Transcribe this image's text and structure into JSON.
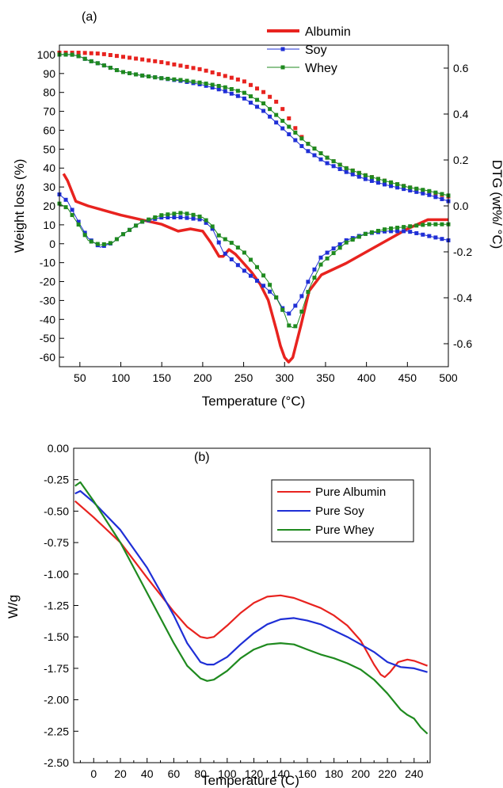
{
  "chart_data": [
    {
      "type": "line",
      "panel_label": "(a)",
      "xlabel": "Temperature (°C)",
      "ylabel_left": "Weight loss (%)",
      "ylabel_right": "DTG (wt%/ °C)",
      "xlim": [
        25,
        500
      ],
      "ylim_left": [
        -65,
        105
      ],
      "ylim_right": [
        -0.7,
        0.7
      ],
      "x_ticks": [
        50,
        100,
        150,
        200,
        250,
        300,
        350,
        400,
        450,
        500
      ],
      "y_left_ticks": [
        100,
        90,
        80,
        70,
        60,
        50,
        40,
        30,
        20,
        10,
        0,
        -10,
        -20,
        -30,
        -40,
        -50,
        -60
      ],
      "y_right_ticks": [
        0.6,
        0.4,
        0.2,
        0.0,
        -0.2,
        -0.4,
        -0.6
      ],
      "legend_position": "top-right",
      "legend": [
        {
          "label": "Albumin",
          "color": "#e8231f",
          "marker": "none"
        },
        {
          "label": "Soy",
          "color": "#1f2fd6",
          "marker": "square"
        },
        {
          "label": "Whey",
          "color": "#1f8a1f",
          "marker": "square"
        }
      ],
      "series": [
        {
          "name": "Albumin",
          "color": "#e8231f",
          "curve": "weight",
          "axis": "left",
          "x": [
            25,
            50,
            75,
            100,
            125,
            150,
            175,
            200,
            225,
            250,
            275,
            290,
            300,
            310,
            325,
            350,
            375,
            400,
            425,
            450,
            475,
            500
          ],
          "y": [
            101,
            101,
            100.5,
            99,
            97.5,
            96,
            94,
            92,
            89,
            86,
            80,
            75,
            70,
            63,
            54,
            46,
            40,
            36,
            33,
            30,
            27.5,
            25
          ]
        },
        {
          "name": "Soy",
          "color": "#1f2fd6",
          "curve": "weight",
          "axis": "left",
          "x": [
            25,
            40,
            50,
            60,
            75,
            100,
            125,
            150,
            175,
            200,
            225,
            250,
            275,
            300,
            325,
            350,
            375,
            400,
            425,
            450,
            475,
            500
          ],
          "y": [
            100,
            100,
            99,
            97,
            95,
            91,
            89,
            87.5,
            86,
            84,
            81,
            77,
            70,
            60,
            50,
            43,
            38,
            34,
            31,
            28.5,
            26,
            22.5
          ]
        },
        {
          "name": "Whey",
          "color": "#1f8a1f",
          "curve": "weight",
          "axis": "left",
          "x": [
            25,
            40,
            50,
            60,
            75,
            100,
            125,
            150,
            175,
            200,
            225,
            250,
            275,
            300,
            325,
            350,
            375,
            400,
            425,
            450,
            475,
            500
          ],
          "y": [
            100,
            100,
            99,
            97,
            95,
            91,
            89,
            87.5,
            86.5,
            85,
            83,
            80,
            74,
            64,
            54,
            46,
            40,
            36,
            33,
            30,
            28,
            25.5
          ]
        },
        {
          "name": "Albumin",
          "color": "#e8231f",
          "curve": "dtg",
          "axis": "right",
          "x": [
            30,
            35,
            45,
            60,
            80,
            100,
            125,
            150,
            170,
            185,
            200,
            210,
            220,
            225,
            232,
            240,
            250,
            260,
            270,
            280,
            290,
            295,
            300,
            305,
            310,
            320,
            330,
            345,
            375,
            400,
            425,
            450,
            475,
            500
          ],
          "y": [
            0.14,
            0.11,
            0.02,
            0.0,
            -0.02,
            -0.04,
            -0.06,
            -0.08,
            -0.11,
            -0.1,
            -0.11,
            -0.16,
            -0.22,
            -0.22,
            -0.19,
            -0.21,
            -0.25,
            -0.29,
            -0.34,
            -0.41,
            -0.54,
            -0.61,
            -0.66,
            -0.68,
            -0.66,
            -0.52,
            -0.37,
            -0.3,
            -0.25,
            -0.2,
            -0.15,
            -0.1,
            -0.06,
            -0.06
          ]
        },
        {
          "name": "Soy",
          "color": "#1f2fd6",
          "curve": "dtg",
          "axis": "right",
          "x": [
            25,
            35,
            50,
            60,
            75,
            90,
            100,
            125,
            150,
            175,
            200,
            212,
            225,
            250,
            275,
            290,
            300,
            305,
            310,
            320,
            330,
            345,
            375,
            400,
            425,
            450,
            475,
            500
          ],
          "y": [
            0.05,
            0.02,
            -0.08,
            -0.14,
            -0.18,
            -0.16,
            -0.13,
            -0.07,
            -0.05,
            -0.05,
            -0.06,
            -0.1,
            -0.2,
            -0.28,
            -0.35,
            -0.4,
            -0.46,
            -0.47,
            -0.45,
            -0.4,
            -0.32,
            -0.22,
            -0.15,
            -0.12,
            -0.11,
            -0.11,
            -0.13,
            -0.15
          ]
        },
        {
          "name": "Whey",
          "color": "#1f8a1f",
          "curve": "dtg",
          "axis": "right",
          "x": [
            25,
            35,
            50,
            60,
            75,
            90,
            100,
            125,
            150,
            175,
            190,
            200,
            210,
            220,
            235,
            250,
            265,
            280,
            290,
            300,
            305,
            310,
            315,
            320,
            330,
            345,
            375,
            400,
            425,
            450,
            475,
            500
          ],
          "y": [
            0.01,
            -0.01,
            -0.09,
            -0.15,
            -0.17,
            -0.16,
            -0.13,
            -0.07,
            -0.04,
            -0.03,
            -0.04,
            -0.05,
            -0.08,
            -0.13,
            -0.16,
            -0.2,
            -0.26,
            -0.33,
            -0.4,
            -0.47,
            -0.52,
            -0.53,
            -0.52,
            -0.47,
            -0.36,
            -0.25,
            -0.16,
            -0.12,
            -0.1,
            -0.09,
            -0.08,
            -0.08
          ]
        }
      ]
    },
    {
      "type": "line",
      "panel_label": "(b)",
      "xlabel": "Temperature (C)",
      "ylabel": "W/g",
      "xlim": [
        -15,
        252
      ],
      "ylim": [
        -2.5,
        0.0
      ],
      "x_ticks": [
        0,
        20,
        40,
        60,
        80,
        100,
        120,
        140,
        160,
        180,
        200,
        220,
        240
      ],
      "y_ticks": [
        "0.00",
        "-0.25",
        "-0.50",
        "-0.75",
        "-1.00",
        "-1.25",
        "-1.50",
        "-1.75",
        "-2.00",
        "-2.25",
        "-2.50"
      ],
      "legend_position": "top-right",
      "legend": [
        {
          "label": "Pure Albumin",
          "color": "#e8231f"
        },
        {
          "label": "Pure Soy",
          "color": "#1f2fd6"
        },
        {
          "label": "Pure Whey",
          "color": "#1f8a1f"
        }
      ],
      "series": [
        {
          "name": "Pure Albumin",
          "color": "#e8231f",
          "x": [
            -14,
            0,
            20,
            40,
            60,
            70,
            80,
            85,
            90,
            100,
            110,
            120,
            130,
            140,
            150,
            160,
            170,
            180,
            190,
            200,
            210,
            215,
            218,
            222,
            228,
            235,
            240,
            245,
            250
          ],
          "y": [
            -0.42,
            -0.55,
            -0.75,
            -1.03,
            -1.3,
            -1.42,
            -1.5,
            -1.51,
            -1.5,
            -1.41,
            -1.31,
            -1.23,
            -1.18,
            -1.17,
            -1.19,
            -1.23,
            -1.27,
            -1.33,
            -1.41,
            -1.53,
            -1.72,
            -1.8,
            -1.82,
            -1.78,
            -1.7,
            -1.68,
            -1.69,
            -1.71,
            -1.73
          ]
        },
        {
          "name": "Pure Soy",
          "color": "#1f2fd6",
          "x": [
            -14,
            -10,
            0,
            20,
            40,
            60,
            70,
            80,
            85,
            90,
            100,
            110,
            120,
            130,
            140,
            150,
            160,
            170,
            180,
            190,
            200,
            210,
            220,
            230,
            240,
            250
          ],
          "y": [
            -0.36,
            -0.34,
            -0.43,
            -0.65,
            -0.95,
            -1.33,
            -1.55,
            -1.7,
            -1.72,
            -1.72,
            -1.66,
            -1.56,
            -1.47,
            -1.4,
            -1.36,
            -1.35,
            -1.37,
            -1.4,
            -1.45,
            -1.5,
            -1.56,
            -1.62,
            -1.7,
            -1.74,
            -1.75,
            -1.78
          ]
        },
        {
          "name": "Pure Whey",
          "color": "#1f8a1f",
          "x": [
            -14,
            -10,
            0,
            20,
            40,
            60,
            70,
            80,
            85,
            90,
            100,
            110,
            120,
            130,
            140,
            150,
            160,
            170,
            180,
            190,
            200,
            210,
            220,
            230,
            235,
            240,
            245,
            250
          ],
          "y": [
            -0.3,
            -0.27,
            -0.42,
            -0.75,
            -1.15,
            -1.55,
            -1.73,
            -1.83,
            -1.85,
            -1.84,
            -1.77,
            -1.67,
            -1.6,
            -1.56,
            -1.55,
            -1.56,
            -1.6,
            -1.64,
            -1.67,
            -1.71,
            -1.76,
            -1.84,
            -1.95,
            -2.08,
            -2.12,
            -2.15,
            -2.22,
            -2.27
          ]
        }
      ]
    }
  ]
}
